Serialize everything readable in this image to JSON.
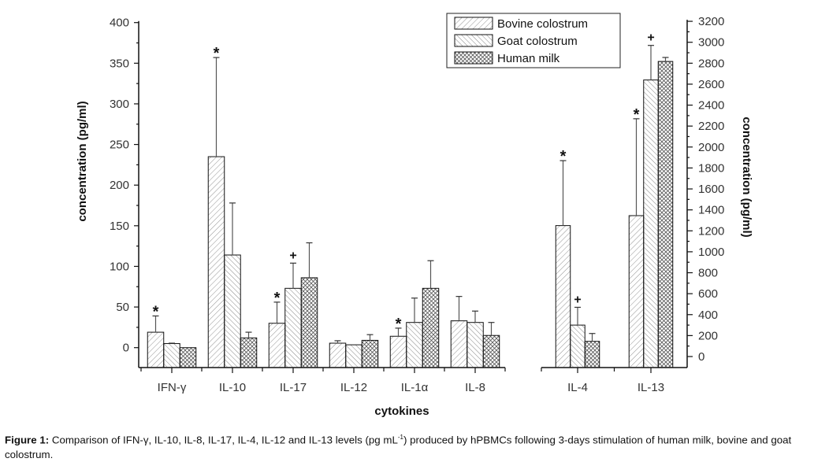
{
  "chart_data": {
    "type": "bar",
    "xlabel": "cytokines",
    "ylabel_left": "concentration (pg/ml)",
    "ylabel_right": "concentration (pg/ml)",
    "ylim_left": [
      0,
      400
    ],
    "ylim_right": [
      0,
      3200
    ],
    "left_ticks": [
      "0",
      "50",
      "100",
      "150",
      "200",
      "250",
      "300",
      "350",
      "400"
    ],
    "right_ticks": [
      "0",
      "200",
      "400",
      "600",
      "800",
      "1000",
      "1200",
      "1400",
      "1600",
      "1800",
      "2000",
      "2200",
      "2400",
      "2600",
      "2800",
      "3000",
      "3200"
    ],
    "legend_position": "top-right",
    "categories": [
      "IFN-γ",
      "IL-10",
      "IL-17",
      "IL-12",
      "IL-1α",
      "IL-8",
      "IL-4",
      "IL-13"
    ],
    "category_axis": [
      "left",
      "left",
      "left",
      "left",
      "left",
      "left",
      "right",
      "right"
    ],
    "series": [
      {
        "name": "Bovine colostrum",
        "values": [
          19,
          235,
          30,
          5.5,
          14,
          33,
          1250,
          1345
        ],
        "errors": [
          20,
          122,
          26,
          3,
          10,
          30,
          620,
          925
        ],
        "markers": [
          "*",
          "*",
          "*",
          "",
          "*",
          "",
          "*",
          "*"
        ]
      },
      {
        "name": "Goat colostrum",
        "values": [
          5,
          114,
          73,
          3.5,
          31,
          31,
          300,
          2640
        ],
        "errors": [
          0.5,
          64,
          31,
          0,
          30,
          14,
          170,
          330
        ],
        "markers": [
          "",
          "",
          "+",
          "",
          "",
          "",
          "+",
          "+"
        ]
      },
      {
        "name": "Human milk",
        "values": [
          0,
          12,
          86,
          9,
          73,
          15,
          145,
          2817
        ],
        "errors": [
          0,
          7,
          43,
          7,
          34,
          16,
          75,
          38
        ],
        "markers": [
          "",
          "",
          "",
          "",
          "",
          "",
          "",
          ""
        ]
      }
    ]
  },
  "caption": {
    "label": "Figure 1:",
    "text": " Comparison of IFN-γ, IL-10, IL-8, IL-17, IL-4, IL-12 and IL-13 levels (pg mL",
    "sup": "-1",
    "text2": ") produced by hPBMCs following 3-days stimulation of human milk, bovine and goat colostrum."
  }
}
